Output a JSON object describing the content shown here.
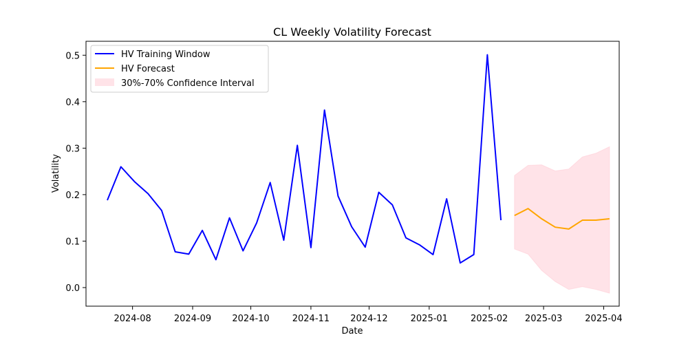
{
  "chart_data": {
    "type": "line",
    "title": "CL Weekly Volatility Forecast",
    "xlabel": "Date",
    "ylabel": "Volatility",
    "x_axis_type": "date",
    "xlim": [
      "2024-07-08",
      "2025-04-09"
    ],
    "ylim": [
      -0.04,
      0.53
    ],
    "x_ticks": [
      {
        "date": "2024-08-01",
        "label": "2024-08"
      },
      {
        "date": "2024-09-01",
        "label": "2024-09"
      },
      {
        "date": "2024-10-01",
        "label": "2024-10"
      },
      {
        "date": "2024-11-01",
        "label": "2024-11"
      },
      {
        "date": "2024-12-01",
        "label": "2024-12"
      },
      {
        "date": "2025-01-01",
        "label": "2025-01"
      },
      {
        "date": "2025-02-01",
        "label": "2025-02"
      },
      {
        "date": "2025-03-01",
        "label": "2025-03"
      },
      {
        "date": "2025-04-01",
        "label": "2025-04"
      }
    ],
    "y_ticks": [
      {
        "value": 0.0,
        "label": "0.0"
      },
      {
        "value": 0.1,
        "label": "0.1"
      },
      {
        "value": 0.2,
        "label": "0.2"
      },
      {
        "value": 0.3,
        "label": "0.3"
      },
      {
        "value": 0.4,
        "label": "0.4"
      },
      {
        "value": 0.5,
        "label": "0.5"
      }
    ],
    "grid": false,
    "legend_position": "top-left",
    "series": [
      {
        "name": "HV Training Window",
        "color": "#0000ff",
        "points": [
          {
            "x": "2024-07-19",
            "y": 0.188
          },
          {
            "x": "2024-07-26",
            "y": 0.26
          },
          {
            "x": "2024-08-02",
            "y": 0.228
          },
          {
            "x": "2024-08-09",
            "y": 0.202
          },
          {
            "x": "2024-08-16",
            "y": 0.166
          },
          {
            "x": "2024-08-23",
            "y": 0.077
          },
          {
            "x": "2024-08-30",
            "y": 0.072
          },
          {
            "x": "2024-09-06",
            "y": 0.123
          },
          {
            "x": "2024-09-13",
            "y": 0.06
          },
          {
            "x": "2024-09-20",
            "y": 0.15
          },
          {
            "x": "2024-09-27",
            "y": 0.079
          },
          {
            "x": "2024-10-04",
            "y": 0.139
          },
          {
            "x": "2024-10-11",
            "y": 0.226
          },
          {
            "x": "2024-10-18",
            "y": 0.102
          },
          {
            "x": "2024-10-25",
            "y": 0.306
          },
          {
            "x": "2024-11-01",
            "y": 0.086
          },
          {
            "x": "2024-11-08",
            "y": 0.382
          },
          {
            "x": "2024-11-15",
            "y": 0.197
          },
          {
            "x": "2024-11-22",
            "y": 0.131
          },
          {
            "x": "2024-11-29",
            "y": 0.087
          },
          {
            "x": "2024-12-06",
            "y": 0.205
          },
          {
            "x": "2024-12-13",
            "y": 0.178
          },
          {
            "x": "2024-12-20",
            "y": 0.107
          },
          {
            "x": "2024-12-27",
            "y": 0.092
          },
          {
            "x": "2025-01-03",
            "y": 0.071
          },
          {
            "x": "2025-01-10",
            "y": 0.191
          },
          {
            "x": "2025-01-17",
            "y": 0.053
          },
          {
            "x": "2025-01-24",
            "y": 0.071
          },
          {
            "x": "2025-01-31",
            "y": 0.501
          },
          {
            "x": "2025-02-07",
            "y": 0.145
          }
        ]
      },
      {
        "name": "HV Forecast",
        "color": "#ffa500",
        "points": [
          {
            "x": "2025-02-14",
            "y": 0.155
          },
          {
            "x": "2025-02-21",
            "y": 0.17
          },
          {
            "x": "2025-02-28",
            "y": 0.148
          },
          {
            "x": "2025-03-07",
            "y": 0.13
          },
          {
            "x": "2025-03-14",
            "y": 0.126
          },
          {
            "x": "2025-03-21",
            "y": 0.145
          },
          {
            "x": "2025-03-28",
            "y": 0.145
          },
          {
            "x": "2025-04-04",
            "y": 0.148
          }
        ]
      }
    ],
    "confidence_interval": {
      "name": "30%-70% Confidence Interval",
      "color": "#ffc0cb",
      "opacity": 0.45,
      "points": [
        {
          "x": "2025-02-14",
          "lower": 0.083,
          "upper": 0.241
        },
        {
          "x": "2025-02-21",
          "lower": 0.072,
          "upper": 0.263
        },
        {
          "x": "2025-02-28",
          "lower": 0.037,
          "upper": 0.264
        },
        {
          "x": "2025-03-07",
          "lower": 0.013,
          "upper": 0.251
        },
        {
          "x": "2025-03-14",
          "lower": -0.004,
          "upper": 0.255
        },
        {
          "x": "2025-03-21",
          "lower": 0.002,
          "upper": 0.281
        },
        {
          "x": "2025-03-28",
          "lower": -0.004,
          "upper": 0.289
        },
        {
          "x": "2025-04-04",
          "lower": -0.012,
          "upper": 0.303
        }
      ]
    }
  }
}
